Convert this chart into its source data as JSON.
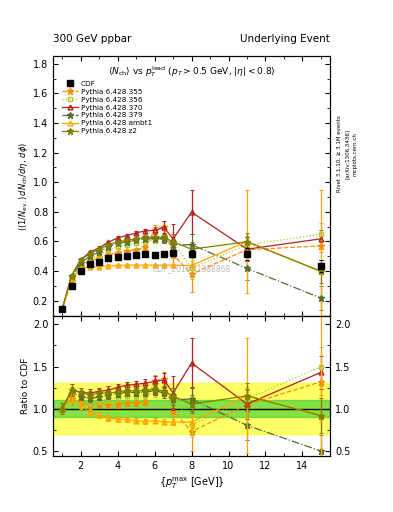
{
  "title_left": "300 GeV ppbar",
  "title_right": "Underlying Event",
  "subtitle": "<N_{ch}> vs p_T^{lead} (p_T > 0.5 GeV, |eta| < 0.8)",
  "ylabel_main": "((1/N_{events}) dN_{ch}/deta, dphi)",
  "ylabel_ratio": "Ratio to CDF",
  "xlabel": "{p_T^{max} [GeV]}",
  "watermark": "CDF_2015_I1388868",
  "cdf_x": [
    1.0,
    1.5,
    2.0,
    2.5,
    3.0,
    3.5,
    4.0,
    4.5,
    5.0,
    5.5,
    6.0,
    6.5,
    7.0,
    8.0,
    11.0,
    15.0
  ],
  "cdf_y": [
    0.145,
    0.3,
    0.4,
    0.445,
    0.462,
    0.487,
    0.498,
    0.5,
    0.51,
    0.515,
    0.51,
    0.518,
    0.52,
    0.518,
    0.518,
    0.432
  ],
  "cdf_yerr": [
    0.008,
    0.015,
    0.015,
    0.015,
    0.015,
    0.015,
    0.015,
    0.015,
    0.015,
    0.015,
    0.015,
    0.015,
    0.015,
    0.025,
    0.04,
    0.04
  ],
  "p355_x": [
    1.0,
    1.5,
    2.0,
    2.5,
    3.0,
    3.5,
    4.0,
    4.5,
    5.0,
    5.5,
    6.0,
    6.5,
    7.0,
    8.0,
    11.0,
    15.0
  ],
  "p355_y": [
    0.145,
    0.335,
    0.435,
    0.468,
    0.49,
    0.51,
    0.525,
    0.535,
    0.545,
    0.56,
    0.68,
    0.7,
    0.51,
    0.38,
    0.545,
    0.57
  ],
  "p355_yerr": [
    0.005,
    0.01,
    0.01,
    0.01,
    0.01,
    0.01,
    0.01,
    0.01,
    0.01,
    0.015,
    0.03,
    0.04,
    0.08,
    0.12,
    0.08,
    0.04
  ],
  "p356_x": [
    1.0,
    1.5,
    2.0,
    2.5,
    3.0,
    3.5,
    4.0,
    4.5,
    5.0,
    5.5,
    6.0,
    6.5,
    7.0,
    8.0,
    11.0,
    15.0
  ],
  "p356_y": [
    0.145,
    0.345,
    0.44,
    0.478,
    0.508,
    0.545,
    0.565,
    0.575,
    0.588,
    0.598,
    0.608,
    0.618,
    0.598,
    0.42,
    0.578,
    0.648
  ],
  "p356_yerr": [
    0.005,
    0.01,
    0.01,
    0.01,
    0.01,
    0.01,
    0.01,
    0.01,
    0.01,
    0.015,
    0.02,
    0.025,
    0.05,
    0.07,
    0.06,
    0.08
  ],
  "p370_x": [
    1.0,
    1.5,
    2.0,
    2.5,
    3.0,
    3.5,
    4.0,
    4.5,
    5.0,
    5.5,
    6.0,
    6.5,
    7.0,
    8.0,
    11.0,
    15.0
  ],
  "p370_y": [
    0.145,
    0.368,
    0.478,
    0.528,
    0.558,
    0.595,
    0.625,
    0.64,
    0.658,
    0.672,
    0.675,
    0.695,
    0.618,
    0.798,
    0.548,
    0.618
  ],
  "p370_yerr": [
    0.005,
    0.01,
    0.01,
    0.01,
    0.01,
    0.01,
    0.01,
    0.01,
    0.01,
    0.015,
    0.025,
    0.04,
    0.1,
    0.15,
    0.08,
    0.06
  ],
  "p379_x": [
    1.0,
    1.5,
    2.0,
    2.5,
    3.0,
    3.5,
    4.0,
    4.5,
    5.0,
    5.5,
    6.0,
    6.5,
    7.0,
    8.0,
    11.0,
    15.0
  ],
  "p379_y": [
    0.145,
    0.358,
    0.458,
    0.5,
    0.528,
    0.565,
    0.588,
    0.598,
    0.608,
    0.618,
    0.618,
    0.618,
    0.578,
    0.578,
    0.418,
    0.218
  ],
  "p379_yerr": [
    0.005,
    0.01,
    0.01,
    0.01,
    0.01,
    0.01,
    0.01,
    0.01,
    0.01,
    0.015,
    0.02,
    0.025,
    0.05,
    0.07,
    0.08,
    0.08
  ],
  "pambt1_x": [
    1.0,
    1.5,
    2.0,
    2.5,
    3.0,
    3.5,
    4.0,
    4.5,
    5.0,
    5.5,
    6.0,
    6.5,
    7.0,
    8.0,
    11.0,
    15.0
  ],
  "pambt1_y": [
    0.145,
    0.348,
    0.418,
    0.428,
    0.43,
    0.435,
    0.438,
    0.44,
    0.44,
    0.44,
    0.44,
    0.44,
    0.44,
    0.438,
    0.6,
    0.4
  ],
  "pambt1_yerr": [
    0.005,
    0.01,
    0.01,
    0.01,
    0.01,
    0.01,
    0.01,
    0.01,
    0.01,
    0.01,
    0.01,
    0.01,
    0.01,
    0.03,
    0.35,
    0.55
  ],
  "pz2_x": [
    1.0,
    1.5,
    2.0,
    2.5,
    3.0,
    3.5,
    4.0,
    4.5,
    5.0,
    5.5,
    6.0,
    6.5,
    7.0,
    8.0,
    11.0,
    15.0
  ],
  "pz2_y": [
    0.145,
    0.368,
    0.478,
    0.518,
    0.548,
    0.578,
    0.598,
    0.608,
    0.618,
    0.628,
    0.628,
    0.628,
    0.598,
    0.548,
    0.598,
    0.398
  ],
  "pz2_yerr": [
    0.005,
    0.01,
    0.01,
    0.01,
    0.01,
    0.01,
    0.01,
    0.01,
    0.01,
    0.015,
    0.02,
    0.025,
    0.05,
    0.05,
    0.06,
    0.08
  ],
  "color_355": "#FF8C00",
  "color_356": "#ADCB2A",
  "color_370": "#B22222",
  "color_379": "#556B2F",
  "color_ambt1": "#FFA500",
  "color_z2": "#808000",
  "band_green_lo": 0.9,
  "band_green_hi": 1.1,
  "band_yellow_lo": 0.7,
  "band_yellow_hi": 1.3,
  "ylim_main": [
    0.1,
    1.85
  ],
  "ylim_ratio": [
    0.45,
    2.1
  ],
  "xlim": [
    0.5,
    15.5
  ]
}
